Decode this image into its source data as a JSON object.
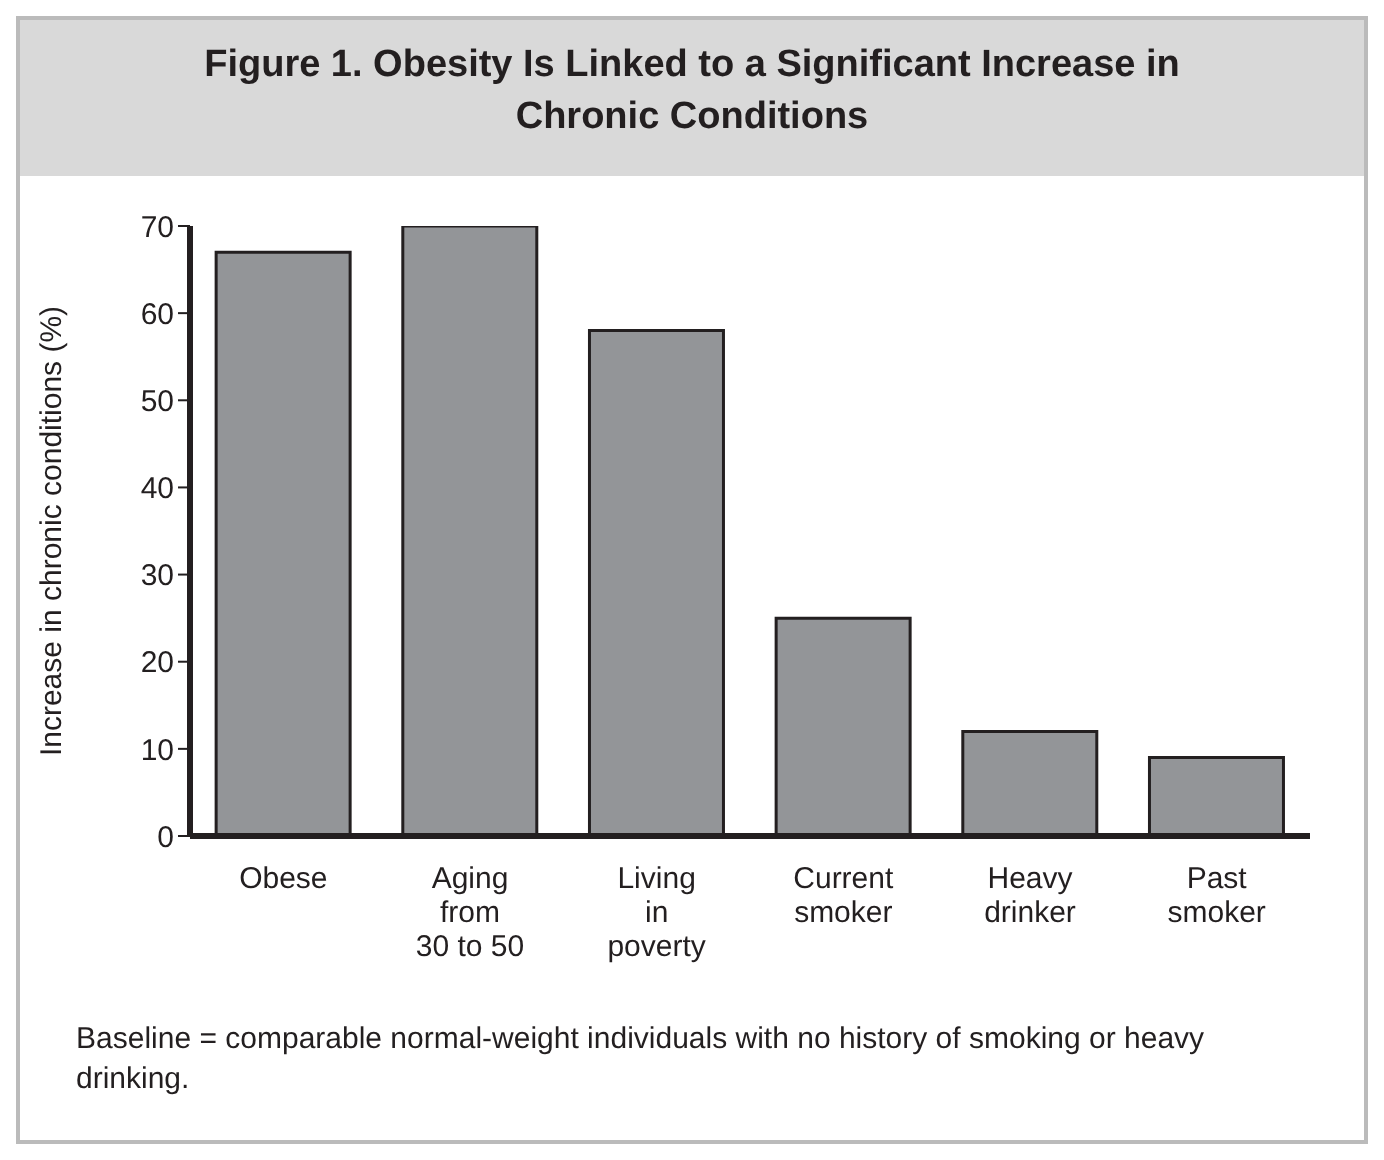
{
  "chart_data": {
    "type": "bar",
    "title": "Figure 1. Obesity Is Linked to a Significant Increase in Chronic Conditions",
    "ylabel": "Increase in chronic conditions (%)",
    "categories": [
      "Obese",
      "Aging\nfrom\n30 to 50",
      "Living\nin\npoverty",
      "Current\nsmoker",
      "Heavy\ndrinker",
      "Past\nsmoker"
    ],
    "values": [
      67,
      70,
      58,
      25,
      12,
      9
    ],
    "color": "#939598",
    "ylim": [
      0,
      70
    ],
    "yticks": [
      0,
      10,
      20,
      30,
      40,
      50,
      60,
      70
    ],
    "grid": false,
    "annotations": [
      "Baseline = comparable normal-weight individuals with no history of smoking or heavy drinking."
    ]
  }
}
